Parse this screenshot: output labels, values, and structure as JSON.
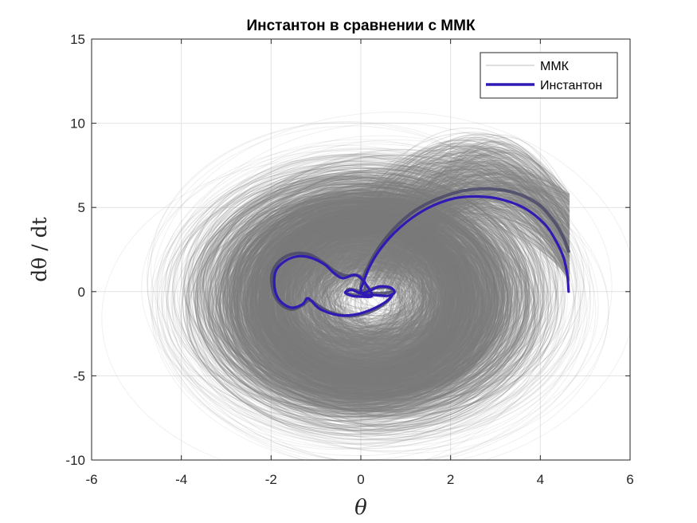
{
  "chart_data": {
    "type": "line",
    "title": "Инстантон в сравнении с ММК",
    "xlabel": "θ",
    "ylabel": "dθ / dt",
    "xlim": [
      -6,
      6
    ],
    "ylim": [
      -10,
      15
    ],
    "xticks": [
      -6,
      -4,
      -2,
      0,
      2,
      4,
      6
    ],
    "yticks": [
      -10,
      -5,
      0,
      5,
      10,
      15
    ],
    "xtick_labels": [
      "-6",
      "-4",
      "-2",
      "0",
      "2",
      "4",
      "6"
    ],
    "ytick_labels": [
      "-10",
      "-5",
      "0",
      "5",
      "10",
      "15"
    ],
    "grid": true,
    "legend_position": "top-right",
    "series": [
      {
        "name": "ММК",
        "style": "thin translucent gray trajectories (ensemble cloud)",
        "color": "#808080",
        "center": [
          0.2,
          1.0
        ],
        "spread_theta": [
          -5.4,
          4.7
        ],
        "spread_dtheta": [
          -9.2,
          10.8
        ]
      },
      {
        "name": "Инстантон",
        "color": "#2f1ab4",
        "points": [
          [
            4.63,
            0.0
          ],
          [
            4.6,
            1.0
          ],
          [
            4.52,
            2.0
          ],
          [
            4.35,
            3.0
          ],
          [
            4.1,
            4.0
          ],
          [
            3.65,
            4.95
          ],
          [
            3.1,
            5.5
          ],
          [
            2.6,
            5.65
          ],
          [
            2.1,
            5.55
          ],
          [
            1.6,
            5.1
          ],
          [
            1.15,
            4.4
          ],
          [
            0.75,
            3.5
          ],
          [
            0.4,
            2.4
          ],
          [
            0.18,
            1.4
          ],
          [
            0.05,
            0.5
          ],
          [
            0.0,
            0.1
          ],
          [
            0.05,
            -0.15
          ],
          [
            0.3,
            -0.2
          ],
          [
            0.6,
            -0.25
          ],
          [
            0.75,
            -0.05
          ],
          [
            0.65,
            0.25
          ],
          [
            0.4,
            0.3
          ],
          [
            0.2,
            0.05
          ],
          [
            0.0,
            -0.1
          ],
          [
            -0.2,
            0.1
          ],
          [
            -0.35,
            -0.05
          ],
          [
            -0.2,
            -0.25
          ],
          [
            0.05,
            -0.3
          ],
          [
            0.25,
            -0.25
          ],
          [
            0.15,
            0.3
          ],
          [
            0.0,
            0.8
          ],
          [
            -0.15,
            1.0
          ],
          [
            -0.4,
            0.8
          ],
          [
            -0.6,
            1.1
          ],
          [
            -0.8,
            1.6
          ],
          [
            -1.1,
            2.0
          ],
          [
            -1.4,
            2.1
          ],
          [
            -1.7,
            1.8
          ],
          [
            -1.9,
            1.2
          ],
          [
            -1.92,
            0.2
          ],
          [
            -1.8,
            -0.55
          ],
          [
            -1.55,
            -0.95
          ],
          [
            -1.3,
            -0.75
          ],
          [
            -1.2,
            -0.4
          ],
          [
            -1.1,
            -0.55
          ],
          [
            -0.9,
            -1.05
          ],
          [
            -0.5,
            -1.4
          ],
          [
            -0.1,
            -1.35
          ],
          [
            0.25,
            -1.05
          ],
          [
            0.5,
            -0.7
          ],
          [
            0.65,
            -0.4
          ],
          [
            0.7,
            -0.2
          ]
        ]
      }
    ],
    "mmk_mean_curve": {
      "color": "#4a4a6a",
      "points": [
        [
          4.63,
          2.4
        ],
        [
          4.5,
          3.3
        ],
        [
          4.3,
          4.2
        ],
        [
          3.95,
          5.2
        ],
        [
          3.45,
          5.85
        ],
        [
          2.9,
          6.1
        ],
        [
          2.3,
          6.0
        ],
        [
          1.7,
          5.5
        ],
        [
          1.2,
          4.8
        ],
        [
          0.8,
          3.9
        ],
        [
          0.45,
          2.8
        ],
        [
          0.2,
          1.7
        ],
        [
          0.05,
          0.8
        ],
        [
          0.0,
          0.2
        ],
        [
          0.1,
          -0.05
        ],
        [
          0.45,
          -0.1
        ],
        [
          0.7,
          0.0
        ],
        [
          0.6,
          0.25
        ],
        [
          0.3,
          0.2
        ],
        [
          0.05,
          0.0
        ],
        [
          -0.25,
          0.15
        ],
        [
          -0.3,
          -0.1
        ],
        [
          0.0,
          -0.2
        ],
        [
          0.1,
          0.4
        ],
        [
          -0.05,
          0.95
        ],
        [
          -0.35,
          0.95
        ],
        [
          -0.6,
          1.25
        ],
        [
          -0.85,
          1.75
        ],
        [
          -1.15,
          2.2
        ],
        [
          -1.5,
          2.25
        ],
        [
          -1.8,
          1.85
        ],
        [
          -1.98,
          1.05
        ],
        [
          -1.95,
          0.0
        ],
        [
          -1.8,
          -0.7
        ],
        [
          -1.55,
          -1.05
        ],
        [
          -1.3,
          -0.8
        ],
        [
          -1.15,
          -0.5
        ],
        [
          -1.0,
          -0.75
        ],
        [
          -0.7,
          -1.2
        ],
        [
          -0.3,
          -1.45
        ],
        [
          0.1,
          -1.3
        ],
        [
          0.4,
          -0.95
        ],
        [
          0.6,
          -0.55
        ],
        [
          0.68,
          -0.25
        ]
      ]
    }
  }
}
